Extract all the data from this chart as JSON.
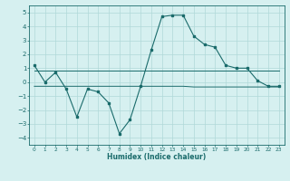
{
  "x": [
    0,
    1,
    2,
    3,
    4,
    5,
    6,
    7,
    8,
    9,
    10,
    11,
    12,
    13,
    14,
    15,
    16,
    17,
    18,
    19,
    20,
    21,
    22,
    23
  ],
  "y_main": [
    1.2,
    0.0,
    0.7,
    -0.5,
    -2.5,
    -0.5,
    -0.7,
    -1.5,
    -3.7,
    -2.7,
    -0.3,
    2.3,
    4.7,
    4.8,
    4.8,
    3.3,
    2.7,
    2.5,
    1.2,
    1.0,
    1.0,
    0.1,
    -0.3,
    -0.3
  ],
  "y_upper": [
    0.85,
    0.85,
    0.85,
    0.85,
    0.85,
    0.85,
    0.85,
    0.85,
    0.85,
    0.85,
    0.85,
    0.85,
    0.85,
    0.85,
    0.85,
    0.85,
    0.85,
    0.85,
    0.85,
    0.85,
    0.85,
    0.85,
    0.85,
    0.85
  ],
  "y_lower": [
    -0.3,
    -0.3,
    -0.3,
    -0.3,
    -0.3,
    -0.3,
    -0.3,
    -0.3,
    -0.3,
    -0.3,
    -0.3,
    -0.3,
    -0.3,
    -0.3,
    -0.3,
    -0.35,
    -0.35,
    -0.35,
    -0.35,
    -0.35,
    -0.35,
    -0.35,
    -0.35,
    -0.35
  ],
  "line_color": "#1a6b6b",
  "bg_color": "#d6f0f0",
  "grid_color": "#b0d8d8",
  "xlabel": "Humidex (Indice chaleur)",
  "xlim": [
    -0.5,
    23.5
  ],
  "ylim": [
    -4.5,
    5.5
  ],
  "yticks": [
    -4,
    -3,
    -2,
    -1,
    0,
    1,
    2,
    3,
    4,
    5
  ],
  "xticks": [
    0,
    1,
    2,
    3,
    4,
    5,
    6,
    7,
    8,
    9,
    10,
    11,
    12,
    13,
    14,
    15,
    16,
    17,
    18,
    19,
    20,
    21,
    22,
    23
  ]
}
